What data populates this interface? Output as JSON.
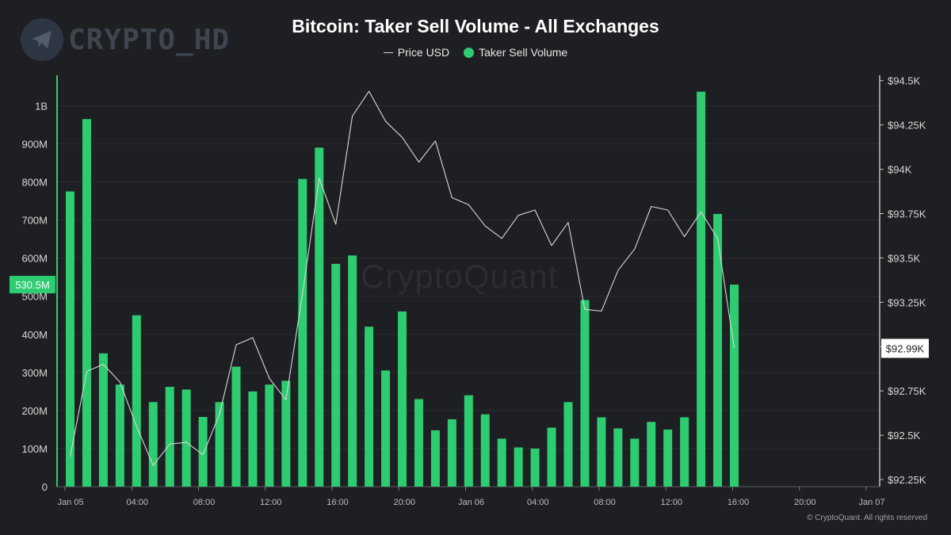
{
  "watermark_logo": "CRYPTO_HD",
  "watermark_center": "CryptoQuant",
  "copyright": "© CryptoQuant. All rights reserved",
  "colors": {
    "background": "#1e1f23",
    "bar": "#2ecc71",
    "price_line": "#d8d8d8",
    "grid": "#2b2c30"
  },
  "chart_data": {
    "type": "bar",
    "title": "Bitcoin: Taker Sell Volume - All Exchanges",
    "legend": [
      "Price USD",
      "Taker Sell Volume"
    ],
    "legend_position": "top-center",
    "grid": true,
    "y_left": {
      "ylim": [
        0,
        1080000000
      ],
      "ticks": [
        0,
        100000000,
        200000000,
        300000000,
        400000000,
        500000000,
        600000000,
        700000000,
        800000000,
        900000000,
        1000000000
      ],
      "tick_labels": [
        "0",
        "100M",
        "200M",
        "300M",
        "400M",
        "500M",
        "600M",
        "700M",
        "800M",
        "900M",
        "1B"
      ],
      "current_label": "530.5M",
      "current_value": 530500000
    },
    "y_right": {
      "ylim": [
        92210,
        94530
      ],
      "ticks": [
        92250,
        92500,
        92750,
        93000,
        93250,
        93500,
        93750,
        94000,
        94250,
        94500
      ],
      "tick_labels": [
        "$92.25K",
        "$92.5K",
        "$92.75K",
        "",
        "$93.25K",
        "$93.5K",
        "$93.75K",
        "$94K",
        "$94.25K",
        "$94.5K"
      ],
      "current_label": "$92.99K",
      "current_value": 92990
    },
    "x_axis": {
      "range": [
        "2025-01-05 00:00",
        "2025-01-07 00:00"
      ],
      "ticks": [
        "Jan 05",
        "04:00",
        "08:00",
        "12:00",
        "16:00",
        "20:00",
        "Jan 06",
        "04:00",
        "08:00",
        "12:00",
        "16:00",
        "20:00",
        "Jan 07"
      ]
    },
    "series": [
      {
        "name": "Taker Sell Volume",
        "type": "bar",
        "x_start": "2025-01-05 01:00",
        "interval_hours": 1,
        "values": [
          775000000,
          965000000,
          350000000,
          268000000,
          450000000,
          222000000,
          262000000,
          255000000,
          183000000,
          222000000,
          315000000,
          250000000,
          268000000,
          278000000,
          808000000,
          890000000,
          585000000,
          607000000,
          420000000,
          305000000,
          460000000,
          230000000,
          148000000,
          177000000,
          240000000,
          190000000,
          126000000,
          103000000,
          100000000,
          155000000,
          222000000,
          490000000,
          182000000,
          153000000,
          126000000,
          170000000,
          150000000,
          182000000,
          1037000000,
          716000000,
          530500000
        ]
      },
      {
        "name": "Price USD",
        "type": "line",
        "x_start": "2025-01-05 01:00",
        "interval_hours": 1,
        "values": [
          92380,
          92860,
          92900,
          92800,
          92550,
          92330,
          92450,
          92460,
          92390,
          92620,
          93010,
          93050,
          92820,
          92700,
          93300,
          93950,
          93690,
          94300,
          94440,
          94270,
          94180,
          94040,
          94160,
          93840,
          93800,
          93680,
          93610,
          93740,
          93770,
          93570,
          93700,
          93210,
          93200,
          93430,
          93550,
          93790,
          93770,
          93620,
          93760,
          93610,
          92990
        ]
      }
    ]
  }
}
